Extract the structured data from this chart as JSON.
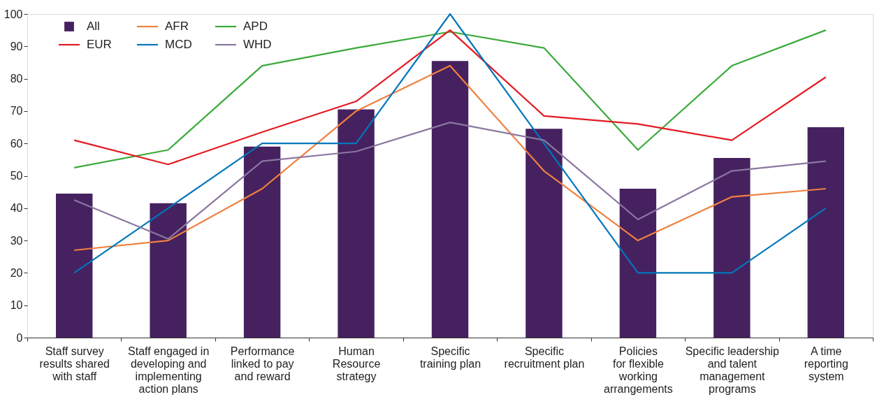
{
  "chart_data": {
    "type": "bar",
    "categories": [
      "Staff survey\nresults shared\nwith staff",
      "Staff engaged in\ndeveloping and\nimplementing\naction plans",
      "Performance\nlinked to pay\nand reward",
      "Human\nResource\nstrategy",
      "Specific\ntraining plan",
      "Specific\nrecruitment plan",
      "Policies\nfor flexible\nworking\narrangements",
      "Specific leadership\nand talent\nmanagement\nprograms",
      "A time\nreporting\nsystem"
    ],
    "series": [
      {
        "name": "All",
        "color": "#46215f",
        "values": [
          44.5,
          41.5,
          59,
          70.5,
          85.5,
          64.5,
          46,
          55.5,
          65
        ]
      },
      {
        "name": "AFR",
        "type": "line",
        "color": "#f08040",
        "values": [
          27,
          30,
          46,
          70,
          84,
          51.5,
          30,
          43.5,
          46
        ]
      },
      {
        "name": "APD",
        "type": "line",
        "color": "#3aaa3a",
        "values": [
          52.5,
          58,
          84,
          89.5,
          94.5,
          89.5,
          58,
          84,
          95
        ]
      },
      {
        "name": "EUR",
        "type": "line",
        "color": "#e31b23",
        "values": [
          61,
          53.5,
          63.5,
          73,
          95,
          68.5,
          66,
          61,
          80.5
        ]
      },
      {
        "name": "MCD",
        "type": "line",
        "color": "#0077bb",
        "values": [
          20,
          40,
          60,
          60,
          100,
          60,
          20,
          20,
          40
        ]
      },
      {
        "name": "WHD",
        "type": "line",
        "color": "#8a77a0",
        "values": [
          42.5,
          30.5,
          54.5,
          57.5,
          66.5,
          61,
          36.5,
          51.5,
          54.5
        ]
      }
    ],
    "ylim": [
      0,
      100
    ],
    "yticks": [
      0,
      10,
      20,
      30,
      40,
      50,
      60,
      70,
      80,
      90,
      100
    ],
    "grid": false,
    "legend": "top left",
    "line_style": "solid",
    "marker": "none"
  }
}
